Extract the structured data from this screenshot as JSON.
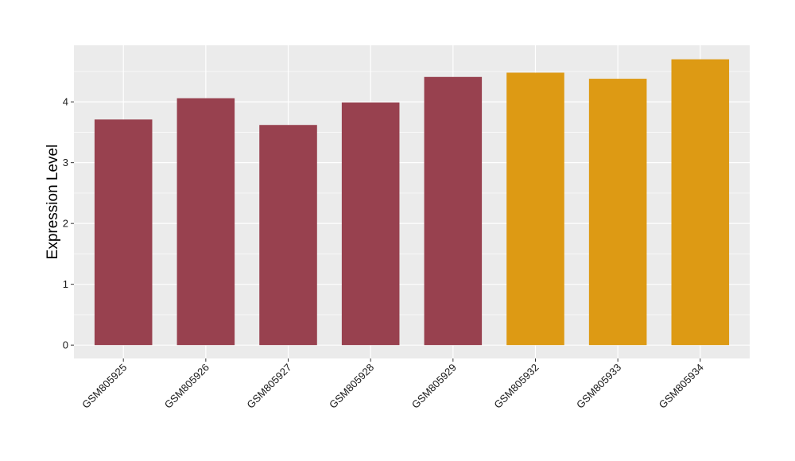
{
  "chart_data": {
    "type": "bar",
    "title": "",
    "xlabel": "",
    "ylabel": "Expression Level",
    "categories": [
      "GSM805925",
      "GSM805926",
      "GSM805927",
      "GSM805928",
      "GSM805929",
      "GSM805932",
      "GSM805933",
      "GSM805934"
    ],
    "values": [
      3.71,
      4.06,
      3.62,
      3.99,
      4.41,
      4.48,
      4.38,
      4.7
    ],
    "bar_colors": [
      "#98414f",
      "#98414f",
      "#98414f",
      "#98414f",
      "#98414f",
      "#dd9a14",
      "#dd9a14",
      "#dd9a14"
    ],
    "yticks": [
      0,
      1,
      2,
      3,
      4
    ],
    "ylim": [
      -0.22,
      4.93
    ],
    "grid": true,
    "panel_background": "#ebebeb",
    "grid_color": "#ffffff"
  }
}
